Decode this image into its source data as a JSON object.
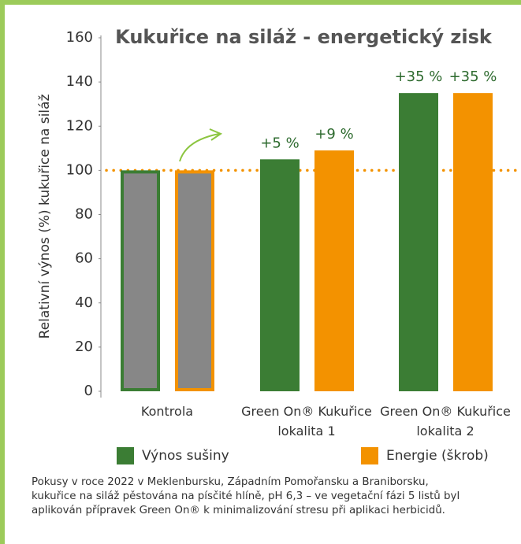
{
  "chart_data": {
    "type": "bar",
    "title": "Kukuřice na siláž - energetický zisk",
    "y_axis_label": "Relativní výnos (%) kukuřice na siláž",
    "categories": [
      "Kontrola",
      "Green On® Kukuřice lokalita 1",
      "Green On® Kukuřice lokalita 2"
    ],
    "series": [
      {
        "name": "Výnos sušiny",
        "color": "#3b7d34",
        "values": [
          100,
          105,
          135
        ],
        "value_labels": [
          null,
          "+5 %",
          "+35 %"
        ]
      },
      {
        "name": "Energie (škrob)",
        "color": "#f39200",
        "values": [
          100,
          109,
          135
        ],
        "value_labels": [
          null,
          "+9 %",
          "+35 %"
        ]
      }
    ],
    "control_fill": "#878787",
    "reference_line": 100,
    "ylim": [
      0,
      160
    ],
    "yticks": [
      0,
      20,
      40,
      60,
      80,
      100,
      120,
      140,
      160
    ],
    "grid": false,
    "footnote": [
      "Pokusy v roce 2022 v Meklenbursku, Západním Pomořansku a Braniborsku,",
      "kukuřice na siláž pěstována na písčité hlíně, pH 6,3 – ve vegetační fázi 5 listů byl",
      "aplikován přípravek Green On® k minimalizování stresu při aplikaci herbicidů."
    ]
  }
}
